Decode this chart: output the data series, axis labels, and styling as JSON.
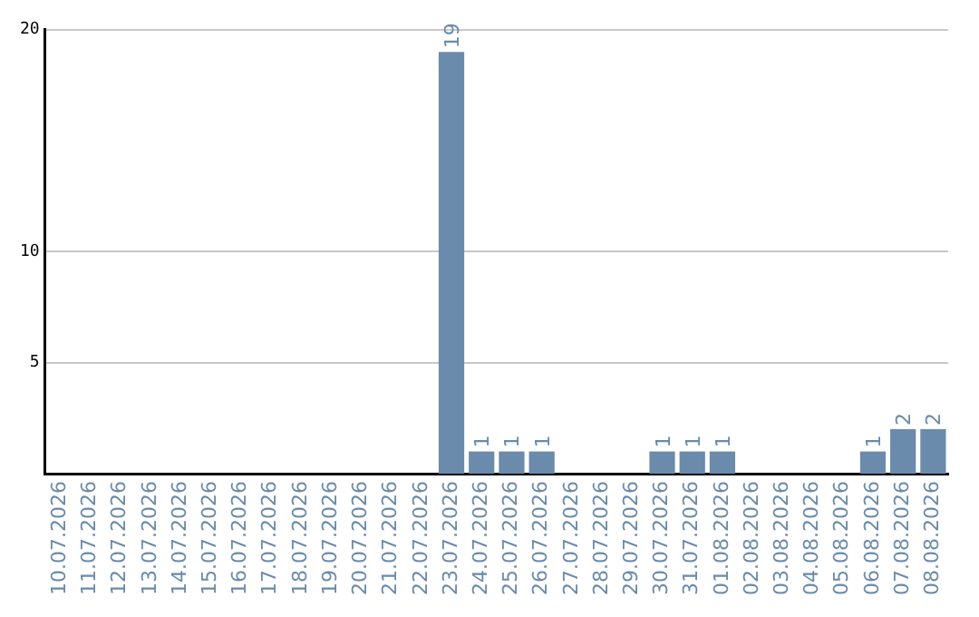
{
  "chart_data": {
    "type": "bar",
    "categories": [
      "10.07.2026",
      "11.07.2026",
      "12.07.2026",
      "13.07.2026",
      "14.07.2026",
      "15.07.2026",
      "16.07.2026",
      "17.07.2026",
      "18.07.2026",
      "19.07.2026",
      "20.07.2026",
      "21.07.2026",
      "22.07.2026",
      "23.07.2026",
      "24.07.2026",
      "25.07.2026",
      "26.07.2026",
      "27.07.2026",
      "28.07.2026",
      "29.07.2026",
      "30.07.2026",
      "31.07.2026",
      "01.08.2026",
      "02.08.2026",
      "03.08.2026",
      "04.08.2026",
      "05.08.2026",
      "06.08.2026",
      "07.08.2026",
      "08.08.2026"
    ],
    "values": [
      0,
      0,
      0,
      0,
      0,
      0,
      0,
      0,
      0,
      0,
      0,
      0,
      0,
      19,
      1,
      1,
      1,
      0,
      0,
      0,
      1,
      1,
      1,
      0,
      0,
      0,
      0,
      1,
      2,
      2
    ],
    "value_labels": [
      null,
      null,
      null,
      null,
      null,
      null,
      null,
      null,
      null,
      null,
      null,
      null,
      null,
      "19",
      "1",
      "1",
      "1",
      null,
      null,
      null,
      "1",
      "1",
      "1",
      null,
      null,
      null,
      null,
      "1",
      "2",
      "2"
    ],
    "color": "#6a8bab",
    "ylim": [
      0,
      20
    ],
    "yticks": [
      5,
      10,
      20
    ],
    "grid": "y",
    "legend": false
  }
}
